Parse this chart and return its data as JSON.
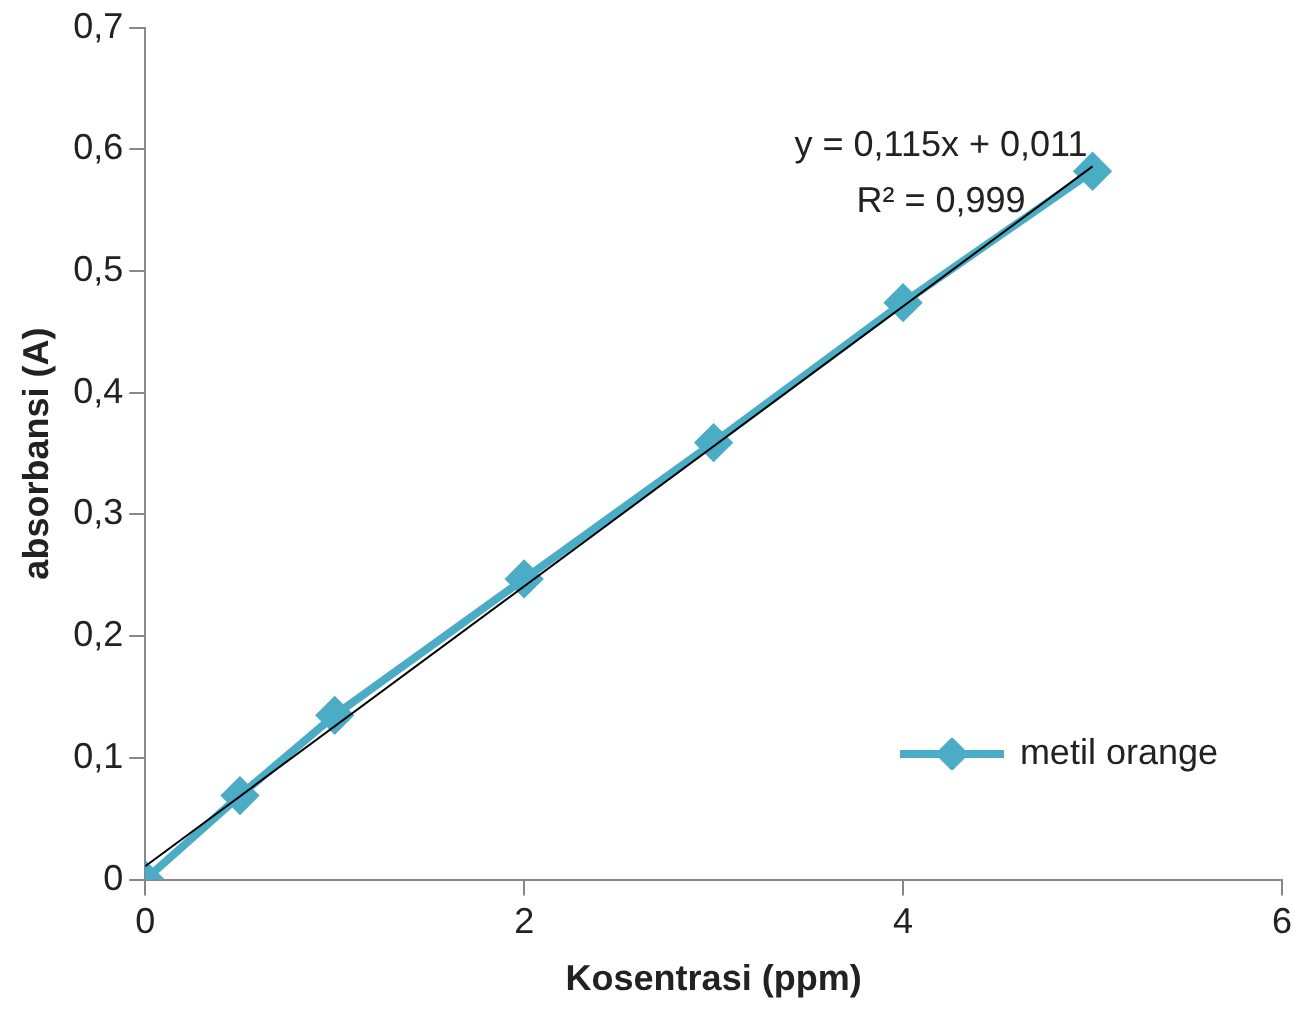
{
  "chart_data": {
    "type": "line",
    "xlabel": "Kosentrasi (ppm)",
    "ylabel": "absorbansi (A)",
    "annotations": [
      "y = 0,115x + 0,011",
      "R² = 0,999"
    ],
    "series": [
      {
        "name": "metil orange",
        "color": "#4bacc6",
        "x": [
          0,
          0.5,
          1,
          2,
          3,
          4,
          5
        ],
        "values": [
          0,
          0.069,
          0.135,
          0.247,
          0.359,
          0.474,
          0.582
        ],
        "marker": "diamond"
      },
      {
        "type": "line",
        "color": "#000000",
        "x": [
          0,
          5
        ],
        "values": [
          0.011,
          0.586
        ],
        "marker": "none"
      }
    ],
    "xlim": [
      0,
      6
    ],
    "xticks": [
      0,
      2,
      4,
      6
    ],
    "ylim": [
      0,
      0.7
    ],
    "yticks": [
      0,
      {
        "value": 0.1,
        "label": "0,1"
      },
      {
        "value": 0.2,
        "label": "0,2"
      },
      {
        "value": 0.3,
        "label": "0,3"
      },
      {
        "value": 0.4,
        "label": "0,4"
      },
      {
        "value": 0.5,
        "label": "0,5"
      },
      {
        "value": 0.6,
        "label": "0,6"
      },
      {
        "value": 0.7,
        "label": "0,7"
      }
    ],
    "grid": false,
    "legend": "bottom right"
  }
}
